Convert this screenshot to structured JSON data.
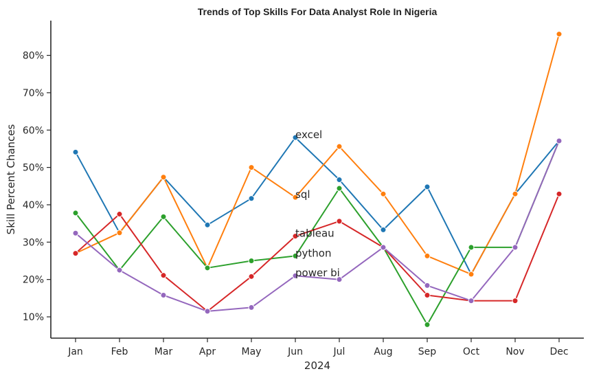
{
  "chart_data": {
    "type": "line",
    "title": "Trends of Top Skills For Data Analyst Role In Nigeria",
    "xlabel": "2024",
    "ylabel": "Skill Percent Chances",
    "categories": [
      "Jan",
      "Feb",
      "Mar",
      "Apr",
      "May",
      "Jun",
      "Jul",
      "Aug",
      "Sep",
      "Oct",
      "Nov",
      "Dec"
    ],
    "y_ticks": [
      "10%",
      "20%",
      "30%",
      "40%",
      "50%",
      "60%",
      "70%",
      "80%"
    ],
    "ylim": [
      4.3,
      89.3
    ],
    "grid": false,
    "series": [
      {
        "name": "excel",
        "color": "#1f77b4",
        "values": [
          54.1,
          32.5,
          47.4,
          34.6,
          41.7,
          58.0,
          46.7,
          33.3,
          44.8,
          21.4,
          42.9,
          57.1
        ]
      },
      {
        "name": "sql",
        "color": "#ff7f0e",
        "values": [
          27.0,
          32.5,
          47.4,
          23.1,
          50.0,
          42.0,
          55.6,
          42.9,
          26.3,
          21.4,
          42.9,
          85.7
        ]
      },
      {
        "name": "python",
        "color": "#2ca02c",
        "values": [
          37.8,
          22.5,
          36.8,
          23.1,
          25.0,
          26.3,
          44.4,
          28.6,
          7.9,
          28.6,
          28.6,
          57.1
        ]
      },
      {
        "name": "tableau",
        "color": "#d62728",
        "values": [
          27.0,
          37.5,
          21.1,
          11.5,
          20.8,
          31.6,
          35.6,
          28.6,
          15.8,
          14.3,
          14.3,
          42.9
        ]
      },
      {
        "name": "power bi",
        "color": "#9467bd",
        "values": [
          32.4,
          22.5,
          15.8,
          11.5,
          12.5,
          21.0,
          20.0,
          28.6,
          18.4,
          14.3,
          28.6,
          57.1
        ]
      }
    ],
    "annotations": [
      {
        "text": "excel",
        "series": "excel",
        "category": "Jun"
      },
      {
        "text": "sql",
        "series": "sql",
        "category": "Jun"
      },
      {
        "text": "tableau",
        "series": "tableau",
        "category": "Jun"
      },
      {
        "text": "python",
        "series": "python",
        "category": "Jun"
      },
      {
        "text": "power bi",
        "series": "power bi",
        "category": "Jun"
      }
    ]
  }
}
